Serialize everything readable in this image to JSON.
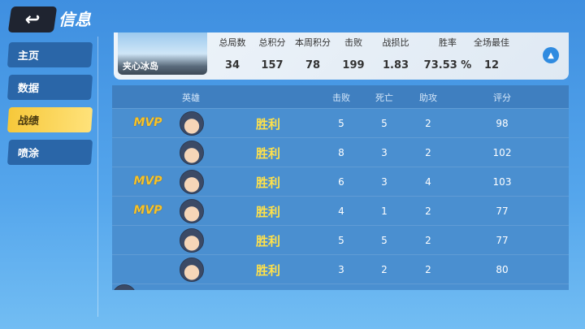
{
  "header": {
    "back_icon": "back-arrow-icon",
    "title": "信息"
  },
  "sidebar": {
    "items": [
      {
        "label": "主页"
      },
      {
        "label": "数据"
      },
      {
        "label": "战绩",
        "active": true
      },
      {
        "label": "喷涂"
      }
    ]
  },
  "summary": {
    "map_name": "夹心冰岛",
    "stats": [
      {
        "label": "总局数",
        "value": "34"
      },
      {
        "label": "总积分",
        "value": "157"
      },
      {
        "label": "本周积分",
        "value": "78"
      },
      {
        "label": "击败",
        "value": "199"
      },
      {
        "label": "战损比",
        "value": "1.83"
      },
      {
        "label": "胜率",
        "value": "73.53 %"
      },
      {
        "label": "全场最佳",
        "value": "12"
      }
    ],
    "collapse_icon": "chevron-up-icon"
  },
  "table": {
    "headers": {
      "hero": "英雄",
      "kills": "击败",
      "deaths": "死亡",
      "assists": "助攻",
      "score": "评分"
    },
    "rows": [
      {
        "mvp": "MVP",
        "result": "胜利",
        "kills": "5",
        "deaths": "5",
        "assists": "2",
        "score": "98"
      },
      {
        "mvp": "",
        "result": "胜利",
        "kills": "8",
        "deaths": "3",
        "assists": "2",
        "score": "102"
      },
      {
        "mvp": "MVP",
        "result": "胜利",
        "kills": "6",
        "deaths": "3",
        "assists": "4",
        "score": "103"
      },
      {
        "mvp": "MVP",
        "result": "胜利",
        "kills": "4",
        "deaths": "1",
        "assists": "2",
        "score": "77"
      },
      {
        "mvp": "",
        "result": "胜利",
        "kills": "5",
        "deaths": "5",
        "assists": "2",
        "score": "77"
      },
      {
        "mvp": "",
        "result": "胜利",
        "kills": "3",
        "deaths": "2",
        "assists": "2",
        "score": "80"
      }
    ]
  },
  "colors": {
    "accent": "#f6c83a",
    "result": "#ffe14a",
    "mvp": "#f7c32a"
  }
}
